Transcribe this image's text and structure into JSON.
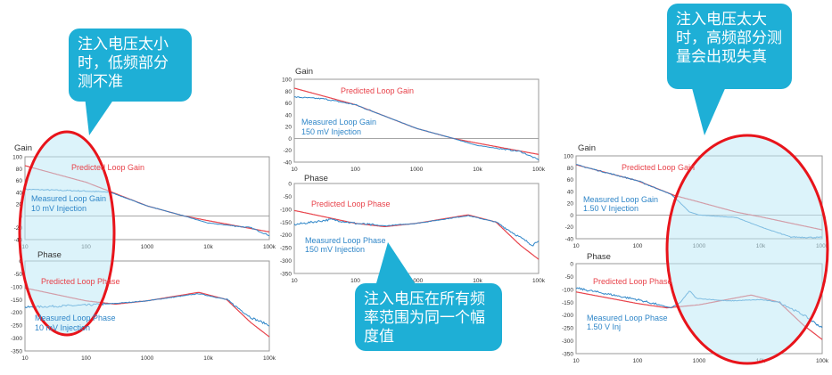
{
  "annotations": {
    "left_callout": "注入电压太小时，低频部分测不准",
    "middle_callout": "注入电压在所有频率范围为同一个幅度值",
    "right_callout": "注入电压太大时，高频部分测量会出现失真"
  },
  "colors": {
    "predicted": "#e8424a",
    "measured": "#2f86c8",
    "callout": "#1eafd6",
    "ellipse_stroke": "#e8141b",
    "ellipse_fill": "#bfe9f5"
  },
  "panels": [
    {
      "gain_title": "Gain",
      "phase_title": "Phase",
      "pred_gain": "Predicted Loop Gain",
      "meas_gain": "Measured Loop Gain",
      "meas_gain_sub": "10 mV Injection",
      "pred_phase": "Predicted Loop Phase",
      "meas_phase": "Measured Loop Phase",
      "meas_phase_sub": "10 mV Injection"
    },
    {
      "gain_title": "Gain",
      "phase_title": "Phase",
      "pred_gain": "Predicted Loop Gain",
      "meas_gain": "Measured Loop Gain",
      "meas_gain_sub": "150 mV Injection",
      "pred_phase": "Predicted Loop Phase",
      "meas_phase": "Measured Loop Phase",
      "meas_phase_sub": "150 mV Injection"
    },
    {
      "gain_title": "Gain",
      "phase_title": "Phase",
      "pred_gain": "Predicted Loop Gain",
      "meas_gain": "Measured Loop Gain",
      "meas_gain_sub": "1.50 V Injection",
      "pred_phase": "Predicted Loop Phase",
      "meas_phase": "Measured Loop Phase",
      "meas_phase_sub": "1.50 V Inj"
    }
  ],
  "chart_data": [
    {
      "type": "line",
      "panel": 0,
      "kind": "gain",
      "xscale": "log",
      "xlim": [
        10,
        100000
      ],
      "ylim": [
        -40,
        100
      ],
      "xticks": [
        "10",
        "100",
        "1000",
        "10k",
        "100k"
      ],
      "yticks": [
        "100",
        "80",
        "60",
        "40",
        "20",
        "0",
        "-20",
        "-40"
      ],
      "series": [
        {
          "name": "Predicted Loop Gain",
          "points": [
            [
              10,
              85
            ],
            [
              100,
              57
            ],
            [
              300,
              38
            ],
            [
              1000,
              17
            ],
            [
              4000,
              0
            ],
            [
              10000,
              -8
            ],
            [
              100000,
              -27
            ]
          ]
        },
        {
          "name": "Measured Loop Gain",
          "points": [
            [
              10,
              45
            ],
            [
              100,
              42
            ],
            [
              250,
              40
            ],
            [
              1000,
              17
            ],
            [
              4000,
              0
            ],
            [
              10000,
              -12
            ],
            [
              50000,
              -20
            ],
            [
              100000,
              -33
            ]
          ]
        }
      ]
    },
    {
      "type": "line",
      "panel": 0,
      "kind": "phase",
      "xscale": "log",
      "xlim": [
        10,
        100000
      ],
      "ylim": [
        -350,
        0
      ],
      "xticks": [
        "10",
        "100",
        "1000",
        "10k",
        "100k"
      ],
      "yticks": [
        "0",
        "-50",
        "-100",
        "-150",
        "-200",
        "-250",
        "-300",
        "-350"
      ],
      "series": [
        {
          "name": "Predicted Loop Phase",
          "points": [
            [
              10,
              -105
            ],
            [
              100,
              -155
            ],
            [
              300,
              -168
            ],
            [
              1000,
              -155
            ],
            [
              7000,
              -122
            ],
            [
              20000,
              -150
            ],
            [
              50000,
              -240
            ],
            [
              100000,
              -295
            ]
          ]
        },
        {
          "name": "Measured Loop Phase",
          "points": [
            [
              10,
              -180
            ],
            [
              100,
              -172
            ],
            [
              300,
              -165
            ],
            [
              1000,
              -155
            ],
            [
              7000,
              -127
            ],
            [
              20000,
              -150
            ],
            [
              50000,
              -220
            ],
            [
              100000,
              -250
            ]
          ]
        }
      ]
    },
    {
      "type": "line",
      "panel": 1,
      "kind": "gain",
      "xscale": "log",
      "xlim": [
        10,
        100000
      ],
      "ylim": [
        -40,
        100
      ],
      "xticks": [
        "10",
        "100",
        "1000",
        "10k",
        "100k"
      ],
      "yticks": [
        "100",
        "80",
        "60",
        "40",
        "20",
        "0",
        "-20",
        "-40"
      ],
      "series": [
        {
          "name": "Predicted Loop Gain",
          "points": [
            [
              10,
              85
            ],
            [
              100,
              57
            ],
            [
              1000,
              17
            ],
            [
              4000,
              0
            ],
            [
              10000,
              -8
            ],
            [
              100000,
              -27
            ]
          ]
        },
        {
          "name": "Measured Loop Gain",
          "points": [
            [
              10,
              70
            ],
            [
              30,
              67
            ],
            [
              100,
              57
            ],
            [
              1000,
              17
            ],
            [
              4000,
              0
            ],
            [
              10000,
              -12
            ],
            [
              50000,
              -22
            ],
            [
              100000,
              -36
            ]
          ]
        }
      ]
    },
    {
      "type": "line",
      "panel": 1,
      "kind": "phase",
      "xscale": "log",
      "xlim": [
        10,
        100000
      ],
      "ylim": [
        -350,
        0
      ],
      "xticks": [
        "10",
        "100",
        "1000",
        "10k",
        "100k"
      ],
      "yticks": [
        "0",
        "-50",
        "-100",
        "-150",
        "-200",
        "-250",
        "-300",
        "-350"
      ],
      "series": [
        {
          "name": "Predicted Loop Phase",
          "points": [
            [
              10,
              -105
            ],
            [
              100,
              -155
            ],
            [
              300,
              -168
            ],
            [
              1000,
              -155
            ],
            [
              7000,
              -122
            ],
            [
              20000,
              -150
            ],
            [
              50000,
              -240
            ],
            [
              100000,
              -295
            ]
          ]
        },
        {
          "name": "Measured Loop Phase",
          "points": [
            [
              10,
              -160
            ],
            [
              40,
              -140
            ],
            [
              100,
              -155
            ],
            [
              300,
              -165
            ],
            [
              1000,
              -155
            ],
            [
              7000,
              -125
            ],
            [
              20000,
              -150
            ],
            [
              50000,
              -210
            ],
            [
              80000,
              -240
            ],
            [
              100000,
              -220
            ]
          ]
        }
      ]
    },
    {
      "type": "line",
      "panel": 2,
      "kind": "gain",
      "xscale": "log",
      "xlim": [
        10,
        100000
      ],
      "ylim": [
        -40,
        100
      ],
      "xticks": [
        "10",
        "100",
        "1000",
        "10k",
        "100k"
      ],
      "yticks": [
        "100",
        "80",
        "60",
        "40",
        "20",
        "0",
        "-20",
        "-40"
      ],
      "series": [
        {
          "name": "Predicted Loop Gain",
          "points": [
            [
              10,
              85
            ],
            [
              100,
              58
            ],
            [
              400,
              33
            ],
            [
              1000,
              22
            ],
            [
              4000,
              5
            ],
            [
              10000,
              -3
            ],
            [
              100000,
              -25
            ]
          ]
        },
        {
          "name": "Measured Loop Gain",
          "points": [
            [
              10,
              85
            ],
            [
              100,
              58
            ],
            [
              350,
              35
            ],
            [
              500,
              20
            ],
            [
              700,
              5
            ],
            [
              1000,
              0
            ],
            [
              4000,
              -4
            ],
            [
              10000,
              -20
            ],
            [
              30000,
              -37
            ],
            [
              100000,
              -38
            ]
          ]
        }
      ]
    },
    {
      "type": "line",
      "panel": 2,
      "kind": "phase",
      "xscale": "log",
      "xlim": [
        10,
        100000
      ],
      "ylim": [
        -350,
        0
      ],
      "xticks": [
        "10",
        "100",
        "1000",
        "10k",
        "100k"
      ],
      "yticks": [
        "0",
        "-50",
        "-100",
        "-150",
        "-200",
        "-250",
        "-300",
        "-350"
      ],
      "series": [
        {
          "name": "Predicted Loop Phase",
          "points": [
            [
              10,
              -110
            ],
            [
              100,
              -155
            ],
            [
              300,
              -172
            ],
            [
              1000,
              -160
            ],
            [
              7000,
              -122
            ],
            [
              20000,
              -150
            ],
            [
              50000,
              -240
            ],
            [
              100000,
              -295
            ]
          ]
        },
        {
          "name": "Measured Loop Phase",
          "points": [
            [
              10,
              -95
            ],
            [
              100,
              -140
            ],
            [
              350,
              -172
            ],
            [
              500,
              -150
            ],
            [
              700,
              -105
            ],
            [
              900,
              -135
            ],
            [
              3000,
              -145
            ],
            [
              10000,
              -140
            ],
            [
              20000,
              -150
            ],
            [
              50000,
              -200
            ],
            [
              100000,
              -250
            ]
          ]
        }
      ]
    }
  ]
}
